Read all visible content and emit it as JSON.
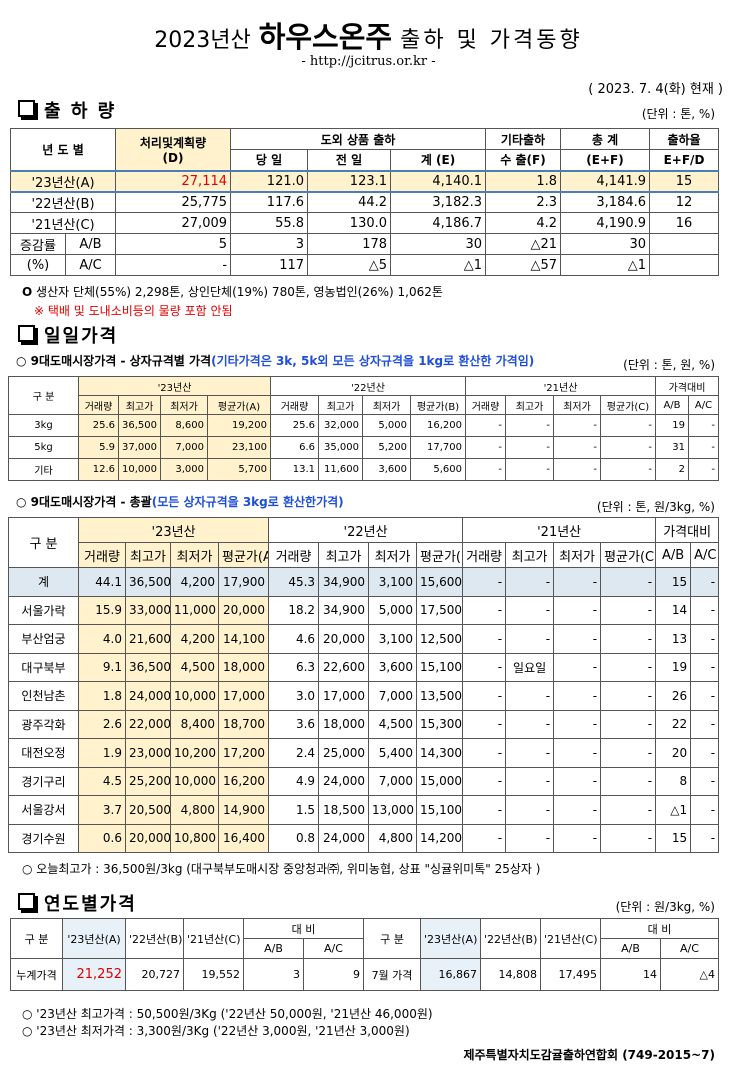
{
  "header": {
    "title_year": "2023년산",
    "title_main": "하우스온주",
    "title_rest": "출하 및 가격동향",
    "url": "- http://jcitrus.or.kr -",
    "date": "( 2023. 7. 4(화) 현재 )"
  },
  "shipment": {
    "heading": "출 하 량",
    "unit": "(단위 : 톤, %)",
    "header_top": [
      "년 도 별",
      "처리및계획량",
      "도외 상품 출하",
      "기타출하",
      "총 계",
      "출하율"
    ],
    "header_plan_sub": "(D)",
    "header_bottom": [
      "당 일",
      "전 일",
      "계 (E)",
      "수 출(F)",
      "(E+F)",
      "E+F/D"
    ],
    "years": [
      [
        "'23년산(A)",
        "27,114",
        "121.0",
        "123.1",
        "4,140.1",
        "1.8",
        "4,141.9",
        "15"
      ],
      [
        "'22년산(B)",
        "25,775",
        "117.6",
        "44.2",
        "3,182.3",
        "2.3",
        "3,184.6",
        "12"
      ],
      [
        "'21년산(C)",
        "27,009",
        "55.8",
        "130.0",
        "4,186.7",
        "4.2",
        "4,190.9",
        "16"
      ]
    ],
    "changes": [
      [
        "증감률",
        "A/B",
        "5",
        "3",
        "178",
        "30",
        "△21",
        "30"
      ],
      [
        "(%)",
        "A/C",
        "-",
        "117",
        "△5",
        "△1",
        "△57",
        "△1"
      ]
    ],
    "note": "생산자 단체(55%) 2,298톤, 상인단체(19%) 780톤, 영농법인(26%) 1,062톤",
    "note_red": "※ 택배 및 도내소비등의 물량 포함 안됨"
  },
  "daily": {
    "heading": "일일가격",
    "by_box": {
      "title": "○ 9대도매시장가격 - 상자규격별 가격",
      "title_note": "(기타가격은 3k, 5k외 모든 상자규격을 1kg로 환산한 가격임)",
      "unit": "(단위 : 톤, 원, %)",
      "group_headers": [
        "구 분",
        "'23년산",
        "'22년산",
        "'21년산",
        "가격대비"
      ],
      "sub_headers": [
        "거래량",
        "최고가",
        "최저가",
        "평균가(A)",
        "거래량",
        "최고가",
        "최저가",
        "평균가(B)",
        "거래량",
        "최고가",
        "최저가",
        "평균가(C)",
        "A/B",
        "A/C"
      ],
      "rows": [
        [
          "3kg",
          "25.6",
          "36,500",
          "8,600",
          "19,200",
          "25.6",
          "32,000",
          "5,000",
          "16,200",
          "-",
          "-",
          "-",
          "-",
          "19",
          "-"
        ],
        [
          "5kg",
          "5.9",
          "37,000",
          "7,000",
          "23,100",
          "6.6",
          "35,000",
          "5,200",
          "17,700",
          "-",
          "-",
          "-",
          "-",
          "31",
          "-"
        ],
        [
          "기타",
          "12.6",
          "10,000",
          "3,000",
          "5,700",
          "13.1",
          "11,600",
          "3,600",
          "5,600",
          "-",
          "-",
          "-",
          "-",
          "2",
          "-"
        ]
      ]
    },
    "total": {
      "title": "○ 9대도매시장가격 - 총괄",
      "title_note": "(모든 상자규격을 3kg로 환산한가격)",
      "unit": "(단위 : 톤, 원/3kg, %)",
      "group_headers": [
        "구 분",
        "'23년산",
        "'22년산",
        "'21년산",
        "가격대비"
      ],
      "sub_headers": [
        "거래량",
        "최고가",
        "최저가",
        "평균가(A)",
        "거래량",
        "최고가",
        "최저가",
        "평균가(B)",
        "거래량",
        "최고가",
        "최저가",
        "평균가(C)",
        "A/B",
        "A/C"
      ],
      "rows": [
        [
          "계",
          "44.1",
          "36,500",
          "4,200",
          "17,900",
          "45.3",
          "34,900",
          "3,100",
          "15,600",
          "-",
          "-",
          "-",
          "-",
          "15",
          "-"
        ],
        [
          "서울가락",
          "15.9",
          "33,000",
          "11,000",
          "20,000",
          "18.2",
          "34,900",
          "5,000",
          "17,500",
          "-",
          "-",
          "-",
          "-",
          "14",
          "-"
        ],
        [
          "부산엄궁",
          "4.0",
          "21,600",
          "4,200",
          "14,100",
          "4.6",
          "20,000",
          "3,100",
          "12,500",
          "-",
          "-",
          "-",
          "-",
          "13",
          "-"
        ],
        [
          "대구북부",
          "9.1",
          "36,500",
          "4,500",
          "18,000",
          "6.3",
          "22,600",
          "3,600",
          "15,100",
          "-",
          "일요일",
          "-",
          "-",
          "19",
          "-"
        ],
        [
          "인천남촌",
          "1.8",
          "24,000",
          "10,000",
          "17,000",
          "3.0",
          "17,000",
          "7,000",
          "13,500",
          "-",
          "-",
          "-",
          "-",
          "26",
          "-"
        ],
        [
          "광주각화",
          "2.6",
          "22,000",
          "8,400",
          "18,700",
          "3.6",
          "18,000",
          "4,500",
          "15,300",
          "-",
          "-",
          "-",
          "-",
          "22",
          "-"
        ],
        [
          "대전오정",
          "1.9",
          "23,000",
          "10,200",
          "17,200",
          "2.4",
          "25,000",
          "5,400",
          "14,300",
          "-",
          "-",
          "-",
          "-",
          "20",
          "-"
        ],
        [
          "경기구리",
          "4.5",
          "25,200",
          "10,000",
          "16,200",
          "4.9",
          "24,000",
          "7,000",
          "15,000",
          "-",
          "-",
          "-",
          "-",
          "8",
          "-"
        ],
        [
          "서울강서",
          "3.7",
          "20,500",
          "4,800",
          "14,900",
          "1.5",
          "18,500",
          "13,000",
          "15,100",
          "-",
          "-",
          "-",
          "-",
          "△1",
          "-"
        ],
        [
          "경기수원",
          "0.6",
          "20,000",
          "10,800",
          "16,400",
          "0.8",
          "24,000",
          "4,800",
          "14,200",
          "-",
          "-",
          "-",
          "-",
          "15",
          "-"
        ]
      ],
      "note": "○ 오늘최고가 : 36,500원/3kg (대구북부도매시장 중앙청과㈜, 위미농협, 상표 \"싱귤위미톡\" 25상자 )"
    }
  },
  "yearly": {
    "heading": "연도별가격",
    "unit": "(단위 : 원/3kg, %)",
    "left": {
      "header": [
        "구 분",
        "'23년산(A)",
        "'22년산(B)",
        "'21년산(C)",
        "대 비",
        "A/B",
        "A/C"
      ],
      "row": [
        "누계가격",
        "21,252",
        "20,727",
        "19,552",
        "3",
        "9"
      ]
    },
    "right": {
      "header": [
        "구 분",
        "'23년산(A)",
        "'22년산(B)",
        "'21년산(C)",
        "대 비",
        "A/B",
        "A/C"
      ],
      "row": [
        "7월 가격",
        "16,867",
        "14,808",
        "17,495",
        "14",
        "△4"
      ]
    },
    "notes": [
      "○ '23년산 최고가격 : 50,500원/3Kg ('22년산 50,000원, '21년산 46,000원)",
      "○ '23년산 최저가격 :  3,300원/3Kg ('22년산  3,000원, '21년산  3,000원)"
    ]
  },
  "footer": "제주특별자치도감귤출하연합회 (749-2015~7)"
}
